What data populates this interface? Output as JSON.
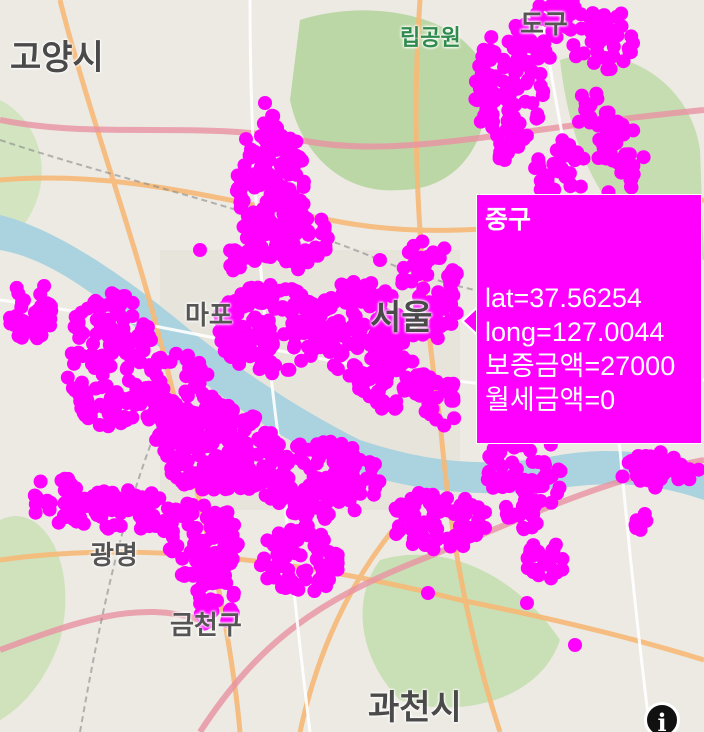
{
  "map": {
    "labels": {
      "goyang": "고양시",
      "park": "립공원",
      "top_right": "도구",
      "mapo": "마포",
      "seoul": "서울",
      "gwangmyeong": "광명",
      "geumcheon": "금천구",
      "gwacheon": "과천시"
    },
    "marker_color": "#ff00ff",
    "water_color": "#aad3df",
    "park_color": "#bfd8a8"
  },
  "tooltip": {
    "title": "중구",
    "lines": [
      "lat=37.56254",
      "long=127.0044",
      "보증금액=27000",
      "월세금액=0"
    ]
  },
  "info_button": {
    "icon": "info-icon",
    "glyph": "i"
  }
}
